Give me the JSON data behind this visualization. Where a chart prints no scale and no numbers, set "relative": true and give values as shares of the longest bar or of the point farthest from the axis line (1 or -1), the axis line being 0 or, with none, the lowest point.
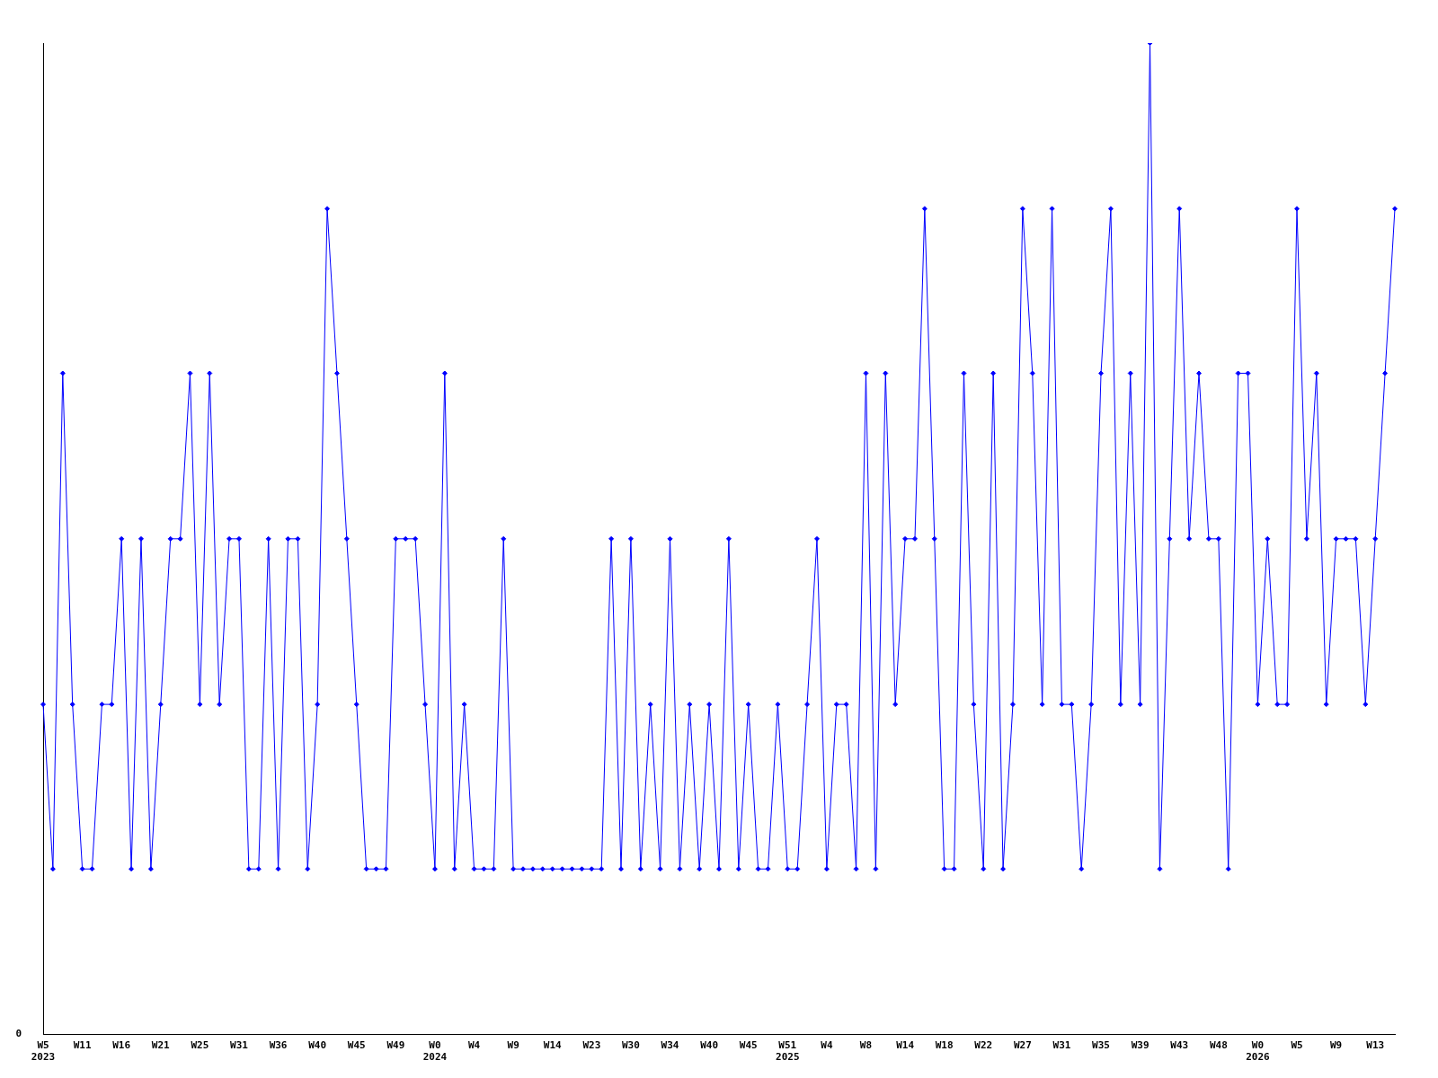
{
  "chart_data": {
    "type": "line",
    "relative": true,
    "marker": "diamond",
    "grid": false,
    "legend": false,
    "annotations": [
      "0"
    ],
    "categories": [
      "W5\n2023",
      null,
      null,
      null,
      "W11",
      null,
      null,
      null,
      "W16",
      null,
      null,
      null,
      "W21",
      null,
      null,
      null,
      "W25",
      null,
      null,
      null,
      "W31",
      null,
      null,
      null,
      "W36",
      null,
      null,
      null,
      "W40",
      null,
      null,
      null,
      "W45",
      null,
      null,
      null,
      "W49",
      null,
      null,
      null,
      "W0\n2024",
      null,
      null,
      null,
      "W4",
      null,
      null,
      null,
      "W9",
      null,
      null,
      null,
      "W14",
      null,
      null,
      null,
      "W23",
      null,
      null,
      null,
      "W30",
      null,
      null,
      null,
      "W34",
      null,
      null,
      null,
      "W40",
      null,
      null,
      null,
      "W45",
      null,
      null,
      null,
      "W51\n2025",
      null,
      null,
      null,
      "W4",
      null,
      null,
      null,
      "W8",
      null,
      null,
      null,
      "W14",
      null,
      null,
      null,
      "W18",
      null,
      null,
      null,
      "W22",
      null,
      null,
      null,
      "W27",
      null,
      null,
      null,
      "W31",
      null,
      null,
      null,
      "W35",
      null,
      null,
      null,
      "W39",
      null,
      null,
      null,
      "W43",
      null,
      null,
      null,
      "W48",
      null,
      null,
      null,
      "W0\n2026",
      null,
      null,
      null,
      "W5",
      null,
      null,
      null,
      "W9",
      null,
      null,
      null,
      "W13",
      null,
      null
    ],
    "series": [
      {
        "color": "#0000ff",
        "values": [
          0.333,
          0.167,
          0.667,
          0.333,
          0.167,
          0.167,
          0.333,
          0.333,
          0.5,
          0.167,
          0.5,
          0.167,
          0.333,
          0.5,
          0.5,
          0.667,
          0.333,
          0.667,
          0.333,
          0.5,
          0.5,
          0.167,
          0.167,
          0.5,
          0.167,
          0.5,
          0.5,
          0.167,
          0.333,
          0.833,
          0.667,
          0.5,
          0.333,
          0.167,
          0.167,
          0.167,
          0.5,
          0.5,
          0.5,
          0.333,
          0.167,
          0.667,
          0.167,
          0.333,
          0.167,
          0.167,
          0.167,
          0.5,
          0.167,
          0.167,
          0.167,
          0.167,
          0.167,
          0.167,
          0.167,
          0.167,
          0.167,
          0.167,
          0.5,
          0.167,
          0.5,
          0.167,
          0.333,
          0.167,
          0.5,
          0.167,
          0.333,
          0.167,
          0.333,
          0.167,
          0.5,
          0.167,
          0.333,
          0.167,
          0.167,
          0.333,
          0.167,
          0.167,
          0.333,
          0.5,
          0.167,
          0.333,
          0.333,
          0.167,
          0.667,
          0.167,
          0.667,
          0.333,
          0.5,
          0.5,
          0.833,
          0.5,
          0.167,
          0.167,
          0.667,
          0.333,
          0.167,
          0.667,
          0.167,
          0.333,
          0.833,
          0.667,
          0.333,
          0.833,
          0.333,
          0.333,
          0.167,
          0.333,
          0.667,
          0.833,
          0.333,
          0.667,
          0.333,
          1,
          0.167,
          0.5,
          0.833,
          0.5,
          0.667,
          0.5,
          0.5,
          0.167,
          0.667,
          0.667,
          0.333,
          0.5,
          0.333,
          0.333,
          0.833,
          0.5,
          0.667,
          0.333,
          0.5,
          0.5,
          0.5,
          0.333,
          0.5,
          0.667,
          0.833
        ]
      }
    ]
  }
}
